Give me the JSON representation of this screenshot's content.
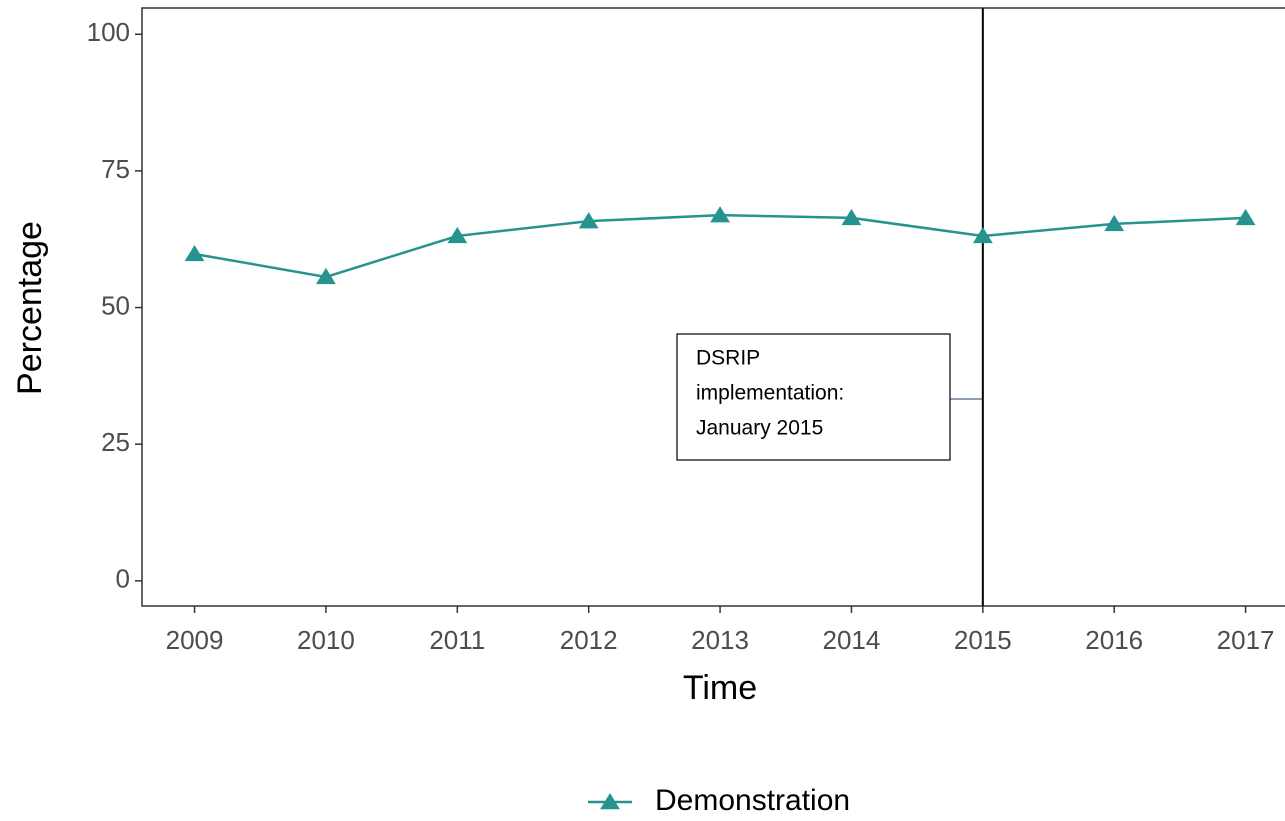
{
  "chart_data": {
    "type": "line",
    "x_label": "Time",
    "y_label": "Percentage",
    "x": [
      2009,
      2010,
      2011,
      2012,
      2013,
      2014,
      2015,
      2016,
      2017
    ],
    "series": [
      {
        "name": "Demonstration",
        "color": "#26938f",
        "marker": "triangle",
        "values": [
          59.8,
          55.6,
          63.1,
          65.8,
          66.9,
          66.4,
          63.1,
          65.3,
          66.4
        ]
      }
    ],
    "xlim": [
      2008.6,
      2017.3
    ],
    "ylim": [
      -4.6,
      104.8
    ],
    "xticks": [
      2009,
      2010,
      2011,
      2012,
      2013,
      2014,
      2015,
      2016,
      2017
    ],
    "yticks": [
      0,
      25,
      50,
      75,
      100
    ],
    "vline": 2015,
    "annotation": [
      "DSRIP",
      "implementation:",
      "January 2015"
    ],
    "legend_position": "bottom"
  }
}
